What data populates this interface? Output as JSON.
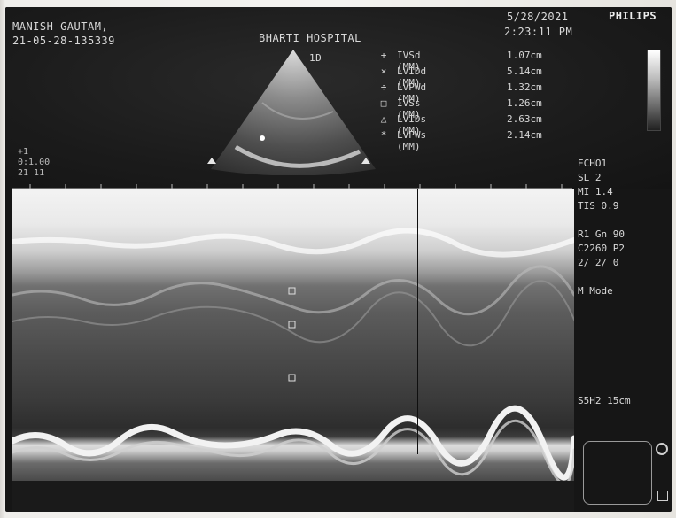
{
  "header": {
    "patient_name": "MANISH GAUTAM,",
    "patient_id": "21-05-28-135339",
    "hospital": "BHARTI HOSPITAL",
    "date": "5/28/2021",
    "time": "2:23:11 PM",
    "brand": "PHILIPS",
    "sector_label": "1D"
  },
  "measurements": [
    {
      "symbol": "+",
      "label": "IVSd (MM)",
      "value": "1.07cm"
    },
    {
      "symbol": "×",
      "label": "LVIDd (MM)",
      "value": "5.14cm"
    },
    {
      "symbol": "÷",
      "label": "LVPWd (MM)",
      "value": "1.32cm"
    },
    {
      "symbol": "□",
      "label": "IVSs (MM)",
      "value": "1.26cm"
    },
    {
      "symbol": "△",
      "label": "LVIDs (MM)",
      "value": "2.63cm"
    },
    {
      "symbol": "*",
      "label": "LVPWs (MM)",
      "value": "2.14cm"
    }
  ],
  "left_side": [
    "+1",
    "0:1.00",
    "21 11"
  ],
  "right_panel": {
    "lines": [
      "ECHO1",
      "SL 2",
      "MI 1.4",
      "TIS 0.9",
      "",
      "R1   Gn 90",
      "C2260 P2",
      "2/ 2/ 0",
      "",
      "M Mode"
    ],
    "depth": "S5H2  15cm"
  }
}
